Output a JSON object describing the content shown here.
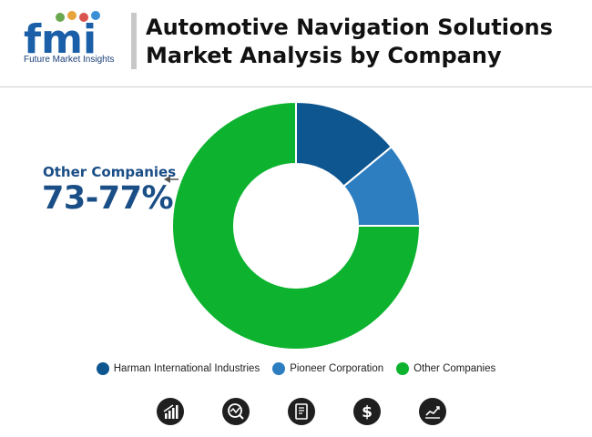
{
  "brand": {
    "logo_letters": "fmi",
    "name": "Future Market Insights"
  },
  "header": {
    "title": "Automotive Navigation Solutions Market Analysis by Company"
  },
  "callout": {
    "label": "Other Companies",
    "value": "73-77%"
  },
  "chart_data": {
    "type": "pie",
    "subtype": "donut",
    "title": "Automotive Navigation Solutions Market Analysis by Company",
    "categories": [
      "Harman International Industries",
      "Pioneer Corporation",
      "Other Companies"
    ],
    "values": [
      14,
      11,
      75
    ],
    "colors": [
      "#0e5690",
      "#2d7ec0",
      "#0db32f"
    ],
    "annotation": {
      "category": "Other Companies",
      "text": "73-77%"
    },
    "legend_position": "bottom"
  },
  "legend": {
    "items": [
      {
        "label": "Harman International Industries",
        "color": "#0e5690"
      },
      {
        "label": "Pioneer Corporation",
        "color": "#2d7ec0"
      },
      {
        "label": "Other Companies",
        "color": "#0db32f"
      }
    ]
  },
  "footer_icons": [
    {
      "name": "bar-chart-icon"
    },
    {
      "name": "analytics-icon"
    },
    {
      "name": "report-icon"
    },
    {
      "name": "dollar-icon"
    },
    {
      "name": "trend-icon"
    }
  ]
}
